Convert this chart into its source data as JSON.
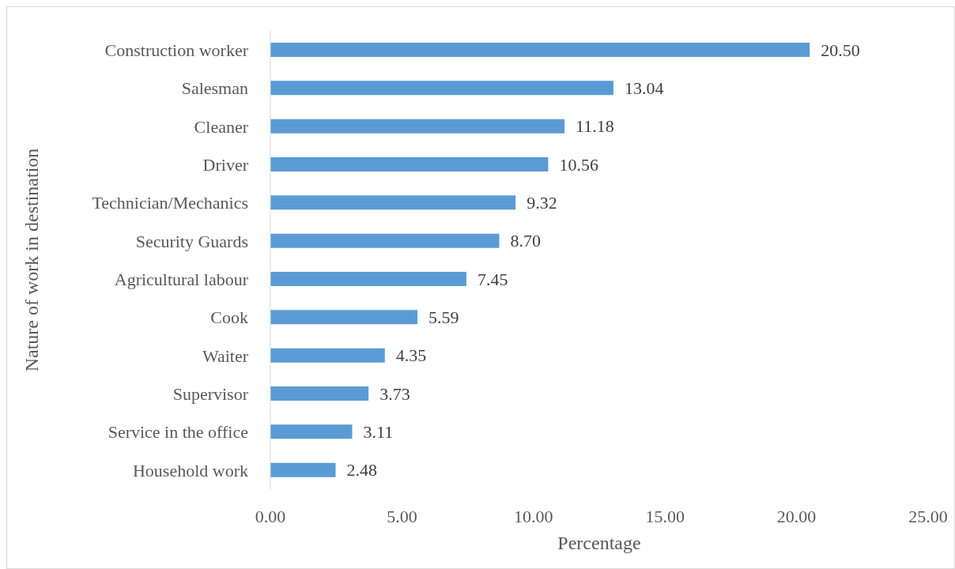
{
  "chart_data": {
    "type": "bar",
    "orientation": "horizontal",
    "xlabel": "Percentage",
    "ylabel": "Nature of work in destination",
    "categories": [
      "Construction worker",
      "Salesman",
      "Cleaner",
      "Driver",
      "Technician/Mechanics",
      "Security Guards",
      "Agricultural labour",
      "Cook",
      "Waiter",
      "Supervisor",
      "Service in the office",
      "Household work"
    ],
    "values": [
      20.5,
      13.04,
      11.18,
      10.56,
      9.32,
      8.7,
      7.45,
      5.59,
      4.35,
      3.73,
      3.11,
      2.48
    ],
    "value_labels": [
      "20.50",
      "13.04",
      "11.18",
      "10.56",
      "9.32",
      "8.70",
      "7.45",
      "5.59",
      "4.35",
      "3.73",
      "3.11",
      "2.48"
    ],
    "color": "#5b9bd5",
    "xlim": [
      0,
      25
    ],
    "xticks": [
      {
        "value": 0,
        "label": "0.00"
      },
      {
        "value": 5,
        "label": "5.00"
      },
      {
        "value": 10,
        "label": "10.00"
      },
      {
        "value": 15,
        "label": "15.00"
      },
      {
        "value": 20,
        "label": "20.00"
      },
      {
        "value": 25,
        "label": "25.00"
      }
    ],
    "grid": false,
    "legend": false
  }
}
